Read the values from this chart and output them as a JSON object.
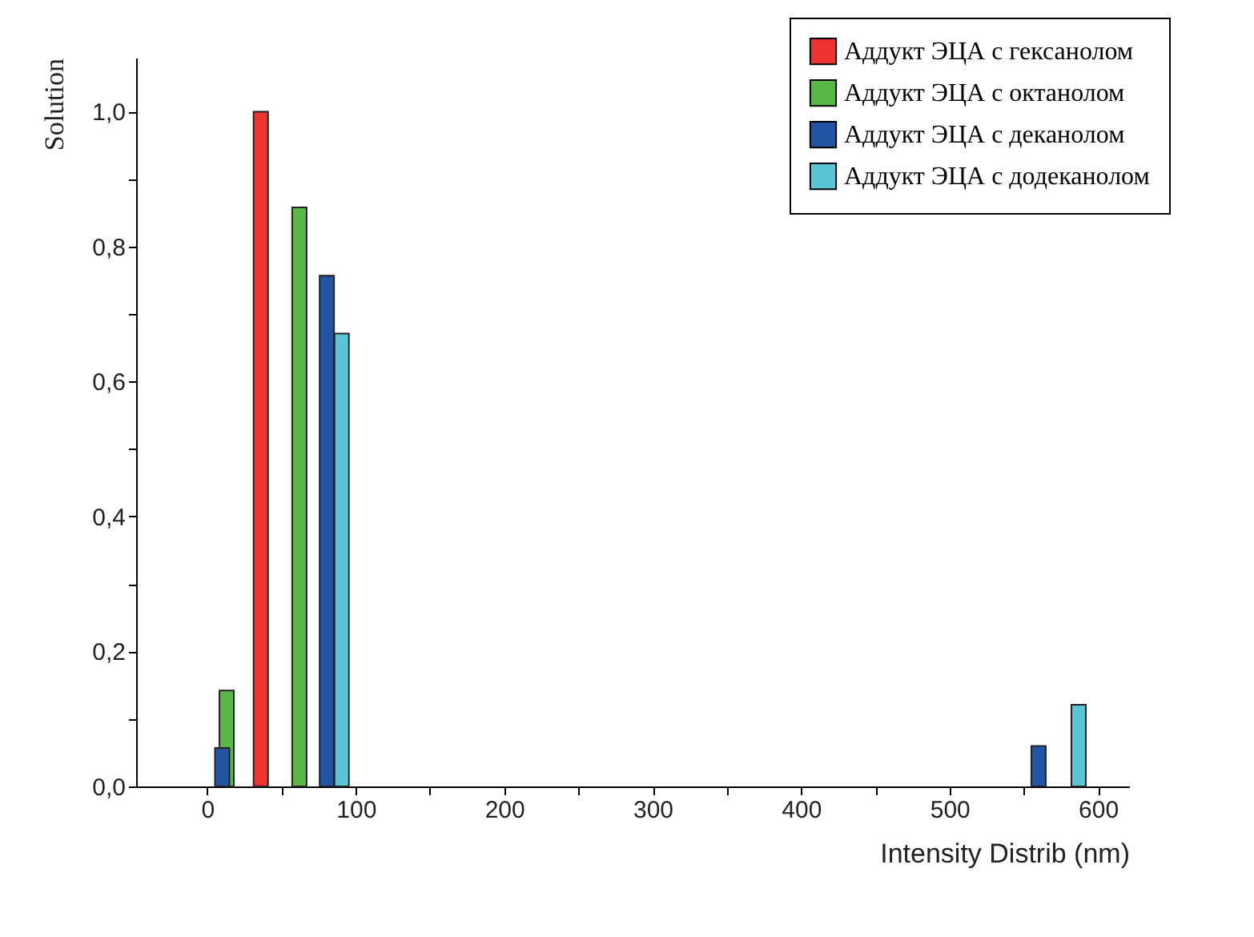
{
  "chart_data": {
    "type": "bar",
    "xlabel": "Intensity Distrib (nm)",
    "ylabel": "Solution",
    "series": [
      {
        "name": "Аддукт ЭЦА с гексанолом",
        "color": "#ee3431",
        "x": [
          36
        ],
        "values": [
          1.0
        ]
      },
      {
        "name": "Аддукт ЭЦА с октанолом",
        "color": "#5cb846",
        "x": [
          13,
          62
        ],
        "values": [
          0.142,
          0.858
        ]
      },
      {
        "name": "Аддукт ЭЦА с деканолом",
        "color": "#2255a4",
        "x": [
          10,
          80.5,
          560
        ],
        "values": [
          0.057,
          0.757,
          0.06
        ]
      },
      {
        "name": "Аддукт ЭЦА с додеканолом",
        "color": "#5bc5d5",
        "x": [
          90.5,
          587
        ],
        "values": [
          0.671,
          0.121
        ]
      }
    ],
    "xlim": [
      -48,
      621
    ],
    "xticks": [
      0,
      {
        "value": 50,
        "label": null
      },
      100,
      {
        "value": 150,
        "label": null
      },
      200,
      {
        "value": 250,
        "label": null
      },
      300,
      {
        "value": 350,
        "label": null
      },
      400,
      {
        "value": 450,
        "label": null
      },
      500,
      {
        "value": 550,
        "label": null
      },
      600
    ],
    "ylim": [
      0,
      1.08
    ],
    "yticks": [
      {
        "value": 0,
        "label": "0,0"
      },
      {
        "value": 0.1,
        "label": null
      },
      {
        "value": 0.2,
        "label": "0,2"
      },
      {
        "value": 0.3,
        "label": null
      },
      {
        "value": 0.4,
        "label": "0,4"
      },
      {
        "value": 0.5,
        "label": null
      },
      {
        "value": 0.6,
        "label": "0,6"
      },
      {
        "value": 0.7,
        "label": null
      },
      {
        "value": 0.8,
        "label": "0,8"
      },
      {
        "value": 0.9,
        "label": null
      },
      {
        "value": 1.0,
        "label": "1,0"
      }
    ],
    "grid": false,
    "legend": "top right"
  }
}
